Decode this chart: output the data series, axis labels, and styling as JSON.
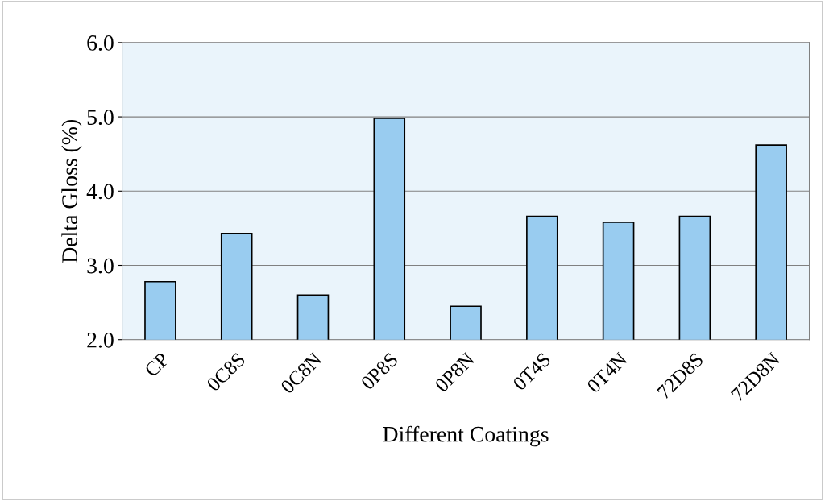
{
  "chart_data": {
    "type": "bar",
    "xlabel": "Different Coatings",
    "ylabel": "Delta Gloss (%)",
    "categories": [
      "CP",
      "0C8S",
      "0C8N",
      "0P8S",
      "0P8N",
      "0T4S",
      "0T4N",
      "72D8S",
      "72D8N"
    ],
    "values": [
      2.78,
      3.43,
      2.6,
      4.98,
      2.45,
      3.66,
      3.58,
      3.66,
      4.62
    ],
    "color": "#99ccf0",
    "ylim": [
      2.0,
      6.0
    ],
    "yticks": [
      {
        "value": 2.0,
        "label": "2.0"
      },
      {
        "value": 3.0,
        "label": "3.0"
      },
      {
        "value": 4.0,
        "label": "4.0"
      },
      {
        "value": 5.0,
        "label": "5.0"
      },
      {
        "value": 6.0,
        "label": "6.0"
      }
    ],
    "grid": "y"
  }
}
